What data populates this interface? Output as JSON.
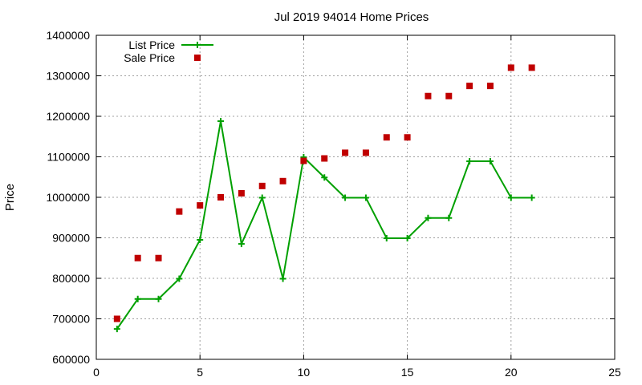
{
  "chart_data": {
    "type": "line",
    "title": "Jul 2019 94014 Home Prices",
    "xlabel": "",
    "ylabel": "Price",
    "xlim": [
      0,
      25
    ],
    "ylim": [
      600000,
      1400000
    ],
    "x_ticks": [
      0,
      5,
      10,
      15,
      20,
      25
    ],
    "y_ticks": [
      600000,
      700000,
      800000,
      900000,
      1000000,
      1100000,
      1200000,
      1300000,
      1400000
    ],
    "grid": true,
    "legend_position": "top-left",
    "series": [
      {
        "name": "List Price",
        "style": "line-with-plus-markers",
        "color": "#00a000",
        "points": [
          [
            1,
            675000
          ],
          [
            2,
            749000
          ],
          [
            3,
            749000
          ],
          [
            4,
            799000
          ],
          [
            5,
            895000
          ],
          [
            6,
            1188000
          ],
          [
            7,
            885000
          ],
          [
            8,
            999000
          ],
          [
            9,
            799000
          ],
          [
            10,
            1099000
          ],
          [
            11,
            1049000
          ],
          [
            12,
            999000
          ],
          [
            13,
            999000
          ],
          [
            14,
            899000
          ],
          [
            15,
            899000
          ],
          [
            16,
            949000
          ],
          [
            17,
            949000
          ],
          [
            18,
            1089000
          ],
          [
            19,
            1089000
          ],
          [
            20,
            999000
          ],
          [
            21,
            999000
          ]
        ]
      },
      {
        "name": "Sale Price",
        "style": "square-markers",
        "color": "#c00000",
        "points": [
          [
            1,
            700000
          ],
          [
            2,
            850000
          ],
          [
            3,
            850000
          ],
          [
            4,
            965000
          ],
          [
            5,
            980000
          ],
          [
            6,
            1000000
          ],
          [
            7,
            1010000
          ],
          [
            8,
            1028000
          ],
          [
            9,
            1040000
          ],
          [
            10,
            1090000
          ],
          [
            11,
            1096000
          ],
          [
            12,
            1110000
          ],
          [
            13,
            1110000
          ],
          [
            14,
            1148000
          ],
          [
            15,
            1148000
          ],
          [
            16,
            1250000
          ],
          [
            17,
            1250000
          ],
          [
            18,
            1275000
          ],
          [
            19,
            1275000
          ],
          [
            20,
            1320000
          ],
          [
            21,
            1320000
          ]
        ]
      }
    ]
  }
}
